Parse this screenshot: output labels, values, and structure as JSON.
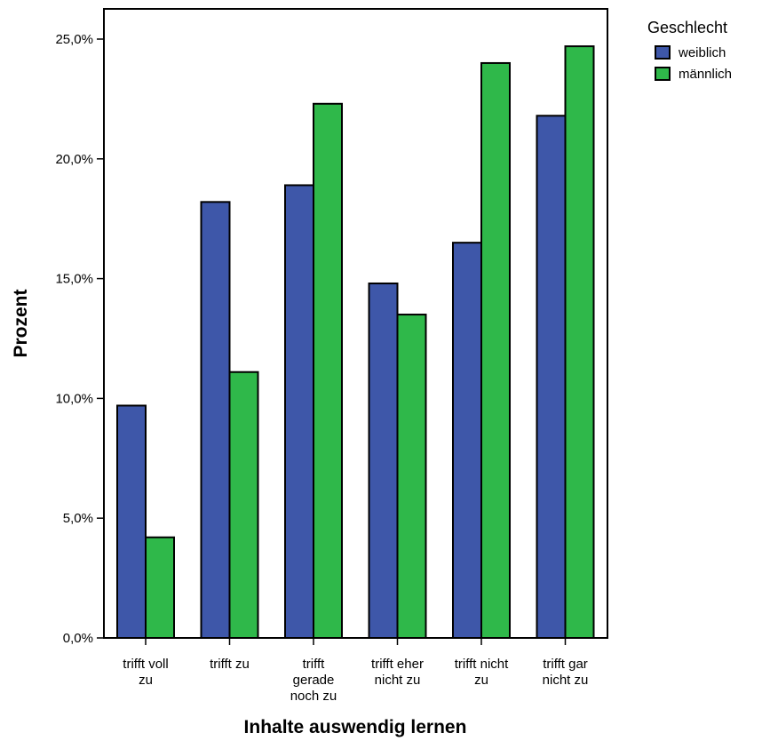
{
  "chart_data": {
    "type": "bar",
    "categories": [
      [
        "trifft voll",
        "zu"
      ],
      [
        "trifft zu"
      ],
      [
        "trifft",
        "gerade",
        "noch zu"
      ],
      [
        "trifft eher",
        "nicht zu"
      ],
      [
        "trifft nicht",
        "zu"
      ],
      [
        "trifft gar",
        "nicht zu"
      ]
    ],
    "series": [
      {
        "name": "weiblich",
        "color": "#3e57a9",
        "values": [
          9.7,
          18.2,
          18.9,
          14.8,
          16.5,
          21.8
        ]
      },
      {
        "name": "männlich",
        "color": "#2fb84a",
        "values": [
          4.2,
          11.1,
          22.3,
          13.5,
          24.0,
          24.7
        ]
      }
    ],
    "xlabel": "Inhalte auswendig lernen",
    "ylabel": "Prozent",
    "ylim": [
      0,
      25
    ],
    "yticks": [
      {
        "value": 0,
        "label": "0,0%"
      },
      {
        "value": 5,
        "label": "5,0%"
      },
      {
        "value": 10,
        "label": "10,0%"
      },
      {
        "value": 15,
        "label": "15,0%"
      },
      {
        "value": 20,
        "label": "20,0%"
      },
      {
        "value": 25,
        "label": "25,0%"
      }
    ],
    "legend": {
      "title": "Geschlecht",
      "placement": "top-right"
    },
    "grid": false
  }
}
